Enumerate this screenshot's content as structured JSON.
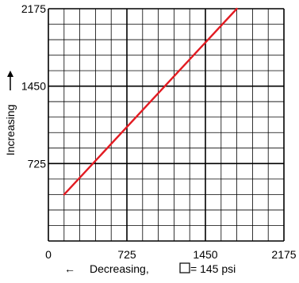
{
  "chart_data": {
    "type": "line",
    "x_ticks": [
      "0",
      "725",
      "1450",
      "2175"
    ],
    "y_ticks": [
      "725",
      "1450",
      "2175"
    ],
    "xlabel": {
      "arrow": "←",
      "text": "Decreasing,",
      "unit_text": "= 145 psi"
    },
    "ylabel": "Increasing",
    "xlim": [
      0,
      2175
    ],
    "ylim": [
      0,
      2175
    ],
    "grid_step": 145,
    "grid": true,
    "series": [
      {
        "x": [
          145,
          1740
        ],
        "y": [
          435,
          2175
        ],
        "color": "#e21b22"
      }
    ],
    "colors": {
      "grid": "#000000",
      "line": "#e21b22"
    }
  }
}
